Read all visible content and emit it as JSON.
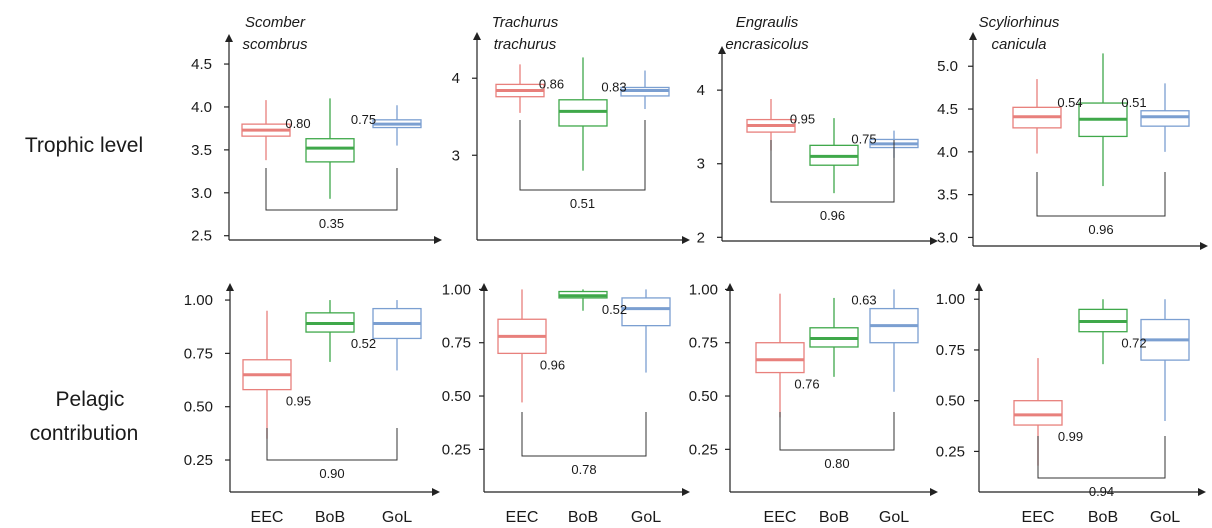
{
  "row_labels": [
    [
      "Trophic level"
    ],
    [
      "Pelagic",
      "contribution"
    ]
  ],
  "species": [
    [
      "Scomber",
      "scombrus"
    ],
    [
      "Trachurus",
      "trachurus"
    ],
    [
      "Engraulis",
      "encrasicolus"
    ],
    [
      "Scyliorhinus",
      "canicula"
    ]
  ],
  "categories": [
    "EEC",
    "BoB",
    "GoL"
  ],
  "colors": {
    "EEC": "#e8807c",
    "BoB": "#3fa84a",
    "GoL": "#7b9fd1"
  },
  "chart_data": [
    {
      "type": "boxplot",
      "row": "Trophic level",
      "species": "Scomber scombrus",
      "categories": [
        "EEC",
        "BoB",
        "GoL"
      ],
      "ylim": [
        2.45,
        4.85
      ],
      "yticks": [
        2.5,
        3.0,
        3.5,
        4.0,
        4.5
      ],
      "ytick_labels": [
        "2.5",
        "3.0",
        "3.5",
        "4.0",
        "4.5"
      ],
      "boxes": [
        {
          "category": "EEC",
          "min": 3.38,
          "q1": 3.66,
          "median": 3.73,
          "q3": 3.8,
          "max": 4.08
        },
        {
          "category": "BoB",
          "min": 2.93,
          "q1": 3.36,
          "median": 3.52,
          "q3": 3.63,
          "max": 4.1
        },
        {
          "category": "GoL",
          "min": 3.55,
          "q1": 3.76,
          "median": 3.8,
          "q3": 3.85,
          "max": 4.02
        }
      ],
      "labels": [
        "0.80",
        "0.75"
      ],
      "bracket_label": "0.35"
    },
    {
      "type": "boxplot",
      "row": "Trophic level",
      "species": "Trachurus trachurus",
      "categories": [
        "EEC",
        "BoB",
        "GoL"
      ],
      "ylim": [
        1.9,
        4.6
      ],
      "yticks": [
        3,
        4
      ],
      "ytick_labels": [
        "3",
        "4"
      ],
      "boxes": [
        {
          "category": "EEC",
          "min": 3.55,
          "q1": 3.76,
          "median": 3.84,
          "q3": 3.92,
          "max": 4.18
        },
        {
          "category": "BoB",
          "min": 2.8,
          "q1": 3.38,
          "median": 3.57,
          "q3": 3.72,
          "max": 4.27
        },
        {
          "category": "GoL",
          "min": 3.6,
          "q1": 3.77,
          "median": 3.84,
          "q3": 3.88,
          "max": 4.1
        }
      ],
      "labels": [
        "0.86",
        "0.83"
      ],
      "bracket_label": "0.51"
    },
    {
      "type": "boxplot",
      "row": "Trophic level",
      "species": "Engraulis encrasicolus",
      "categories": [
        "EEC",
        "BoB",
        "GoL"
      ],
      "ylim": [
        1.95,
        4.6
      ],
      "yticks": [
        2,
        3,
        4
      ],
      "ytick_labels": [
        "2",
        "3",
        "4"
      ],
      "boxes": [
        {
          "category": "EEC",
          "min": 3.18,
          "q1": 3.43,
          "median": 3.52,
          "q3": 3.6,
          "max": 3.88
        },
        {
          "category": "BoB",
          "min": 2.6,
          "q1": 2.98,
          "median": 3.1,
          "q3": 3.25,
          "max": 3.62
        },
        {
          "category": "GoL",
          "min": 3.08,
          "q1": 3.22,
          "median": 3.27,
          "q3": 3.33,
          "max": 3.45
        }
      ],
      "labels": [
        "0.95",
        "0.75"
      ],
      "bracket_label": "0.96"
    },
    {
      "type": "boxplot",
      "row": "Trophic level",
      "species": "Scyliorhinus canicula",
      "categories": [
        "EEC",
        "BoB",
        "GoL"
      ],
      "ylim": [
        2.9,
        5.4
      ],
      "yticks": [
        3.0,
        3.5,
        4.0,
        4.5,
        5.0
      ],
      "ytick_labels": [
        "3.0",
        "3.5",
        "4.0",
        "4.5",
        "5.0"
      ],
      "boxes": [
        {
          "category": "EEC",
          "min": 3.98,
          "q1": 4.28,
          "median": 4.41,
          "q3": 4.52,
          "max": 4.85
        },
        {
          "category": "BoB",
          "min": 3.6,
          "q1": 4.18,
          "median": 4.38,
          "q3": 4.57,
          "max": 5.15
        },
        {
          "category": "GoL",
          "min": 4.0,
          "q1": 4.3,
          "median": 4.41,
          "q3": 4.48,
          "max": 4.8
        }
      ],
      "labels": [
        "0.54",
        "0.51"
      ],
      "bracket_label": "0.96"
    },
    {
      "type": "boxplot",
      "row": "Pelagic contribution",
      "species": "Scomber scombrus",
      "categories": [
        "EEC",
        "BoB",
        "GoL"
      ],
      "ylim": [
        0.1,
        1.08
      ],
      "yticks": [
        0.25,
        0.5,
        0.75,
        1.0
      ],
      "ytick_labels": [
        "0.25",
        "0.50",
        "0.75",
        "1.00"
      ],
      "boxes": [
        {
          "category": "EEC",
          "min": 0.35,
          "q1": 0.58,
          "median": 0.65,
          "q3": 0.72,
          "max": 0.95
        },
        {
          "category": "BoB",
          "min": 0.71,
          "q1": 0.85,
          "median": 0.89,
          "q3": 0.94,
          "max": 1.0
        },
        {
          "category": "GoL",
          "min": 0.67,
          "q1": 0.82,
          "median": 0.89,
          "q3": 0.96,
          "max": 1.0
        }
      ],
      "labels": [
        "0.95",
        "0.52"
      ],
      "bracket_label": "0.90"
    },
    {
      "type": "boxplot",
      "row": "Pelagic contribution",
      "species": "Trachurus trachurus",
      "categories": [
        "EEC",
        "BoB",
        "GoL"
      ],
      "ylim": [
        0.05,
        1.03
      ],
      "yticks": [
        0.25,
        0.5,
        0.75,
        1.0
      ],
      "ytick_labels": [
        "0.25",
        "0.50",
        "0.75",
        "1.00"
      ],
      "boxes": [
        {
          "category": "EEC",
          "min": 0.47,
          "q1": 0.7,
          "median": 0.78,
          "q3": 0.86,
          "max": 1.0
        },
        {
          "category": "BoB",
          "min": 0.9,
          "q1": 0.96,
          "median": 0.97,
          "q3": 0.99,
          "max": 1.0
        },
        {
          "category": "GoL",
          "min": 0.61,
          "q1": 0.83,
          "median": 0.91,
          "q3": 0.96,
          "max": 1.0
        }
      ],
      "labels": [
        "0.96",
        "0.52"
      ],
      "bracket_label": "0.78"
    },
    {
      "type": "boxplot",
      "row": "Pelagic contribution",
      "species": "Engraulis encrasicolus",
      "categories": [
        "EEC",
        "BoB",
        "GoL"
      ],
      "ylim": [
        0.05,
        1.03
      ],
      "yticks": [
        0.25,
        0.5,
        0.75,
        1.0
      ],
      "ytick_labels": [
        "0.25",
        "0.50",
        "0.75",
        "1.00"
      ],
      "boxes": [
        {
          "category": "EEC",
          "min": 0.4,
          "q1": 0.61,
          "median": 0.67,
          "q3": 0.75,
          "max": 0.98
        },
        {
          "category": "BoB",
          "min": 0.59,
          "q1": 0.73,
          "median": 0.77,
          "q3": 0.82,
          "max": 0.96
        },
        {
          "category": "GoL",
          "min": 0.52,
          "q1": 0.75,
          "median": 0.83,
          "q3": 0.91,
          "max": 1.0
        }
      ],
      "labels": [
        "0.76",
        "0.63"
      ],
      "bracket_label": "0.80"
    },
    {
      "type": "boxplot",
      "row": "Pelagic contribution",
      "species": "Scyliorhinus canicula",
      "categories": [
        "EEC",
        "BoB",
        "GoL"
      ],
      "ylim": [
        0.05,
        1.08
      ],
      "yticks": [
        0.25,
        0.5,
        0.75,
        1.0
      ],
      "ytick_labels": [
        "0.25",
        "0.50",
        "0.75",
        "1.00"
      ],
      "boxes": [
        {
          "category": "EEC",
          "min": 0.18,
          "q1": 0.38,
          "median": 0.43,
          "q3": 0.5,
          "max": 0.71
        },
        {
          "category": "BoB",
          "min": 0.68,
          "q1": 0.84,
          "median": 0.89,
          "q3": 0.95,
          "max": 1.0
        },
        {
          "category": "GoL",
          "min": 0.4,
          "q1": 0.7,
          "median": 0.8,
          "q3": 0.9,
          "max": 1.0
        }
      ],
      "labels": [
        "0.99",
        "0.72"
      ],
      "bracket_label": "0.94"
    }
  ]
}
